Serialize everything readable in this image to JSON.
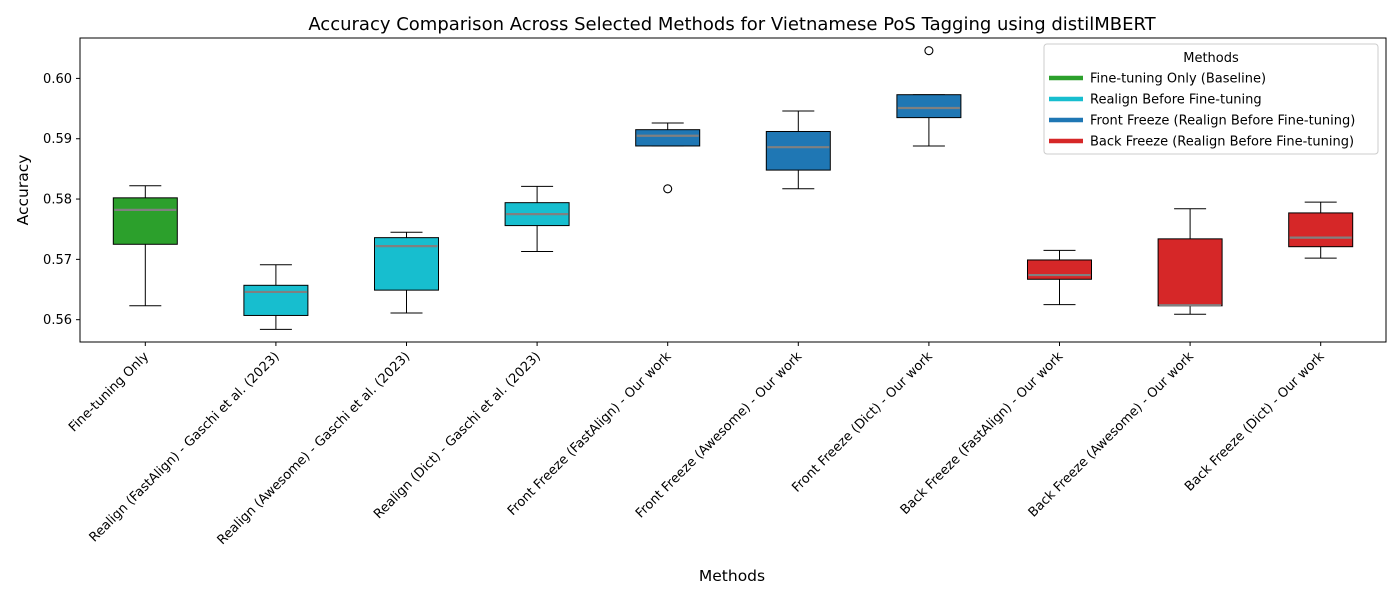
{
  "chart_data": {
    "type": "boxplot",
    "title": "Accuracy Comparison Across Selected Methods for Vietnamese PoS Tagging using distilMBERT",
    "xlabel": "Methods",
    "ylabel": "Accuracy",
    "ylim": [
      0.5563,
      0.6067
    ],
    "yticks": [
      0.56,
      0.57,
      0.58,
      0.59,
      0.6
    ],
    "ytick_labels": [
      "0.56",
      "0.57",
      "0.58",
      "0.59",
      "0.60"
    ],
    "grid": false,
    "median_color": "#808080",
    "categories": [
      "Fine-tuning Only",
      "Realign (FastAlign) - Gaschi et al. (2023)",
      "Realign (Awesome) - Gaschi et al. (2023)",
      "Realign (Dict) - Gaschi et al. (2023)",
      "Front Freeze (FastAlign) - Our work",
      "Front Freeze (Awesome) - Our work",
      "Front Freeze (Dict) - Our work",
      "Back Freeze (FastAlign) - Our work",
      "Back Freeze (Awesome) - Our work",
      "Back Freeze (Dict) - Our work"
    ],
    "boxes": [
      {
        "group": 0,
        "whisker_low": 0.5623,
        "q1": 0.5725,
        "median": 0.5782,
        "q3": 0.5802,
        "whisker_high": 0.5822,
        "outliers": []
      },
      {
        "group": 1,
        "whisker_low": 0.5584,
        "q1": 0.5607,
        "median": 0.5646,
        "q3": 0.5657,
        "whisker_high": 0.5691,
        "outliers": []
      },
      {
        "group": 1,
        "whisker_low": 0.5611,
        "q1": 0.5649,
        "median": 0.5722,
        "q3": 0.5736,
        "whisker_high": 0.5745,
        "outliers": []
      },
      {
        "group": 1,
        "whisker_low": 0.5713,
        "q1": 0.5756,
        "median": 0.5775,
        "q3": 0.5794,
        "whisker_high": 0.5821,
        "outliers": []
      },
      {
        "group": 2,
        "whisker_low": 0.5888,
        "q1": 0.5888,
        "median": 0.5905,
        "q3": 0.5915,
        "whisker_high": 0.5926,
        "outliers": [
          0.5817
        ]
      },
      {
        "group": 2,
        "whisker_low": 0.5817,
        "q1": 0.5848,
        "median": 0.5886,
        "q3": 0.5912,
        "whisker_high": 0.5946,
        "outliers": []
      },
      {
        "group": 2,
        "whisker_low": 0.5888,
        "q1": 0.5935,
        "median": 0.5951,
        "q3": 0.5973,
        "whisker_high": 0.5973,
        "outliers": [
          0.6046
        ]
      },
      {
        "group": 3,
        "whisker_low": 0.5625,
        "q1": 0.5667,
        "median": 0.5674,
        "q3": 0.5699,
        "whisker_high": 0.5715,
        "outliers": []
      },
      {
        "group": 3,
        "whisker_low": 0.5609,
        "q1": 0.5623,
        "median": 0.5624,
        "q3": 0.5734,
        "whisker_high": 0.5784,
        "outliers": []
      },
      {
        "group": 3,
        "whisker_low": 0.5702,
        "q1": 0.5721,
        "median": 0.5736,
        "q3": 0.5777,
        "whisker_high": 0.5795,
        "outliers": []
      }
    ],
    "legend": {
      "title": "Methods",
      "placement": "top-right",
      "entries": [
        {
          "label": "Fine-tuning Only (Baseline)",
          "color": "#2ca02c"
        },
        {
          "label": "Realign Before Fine-tuning",
          "color": "#17becf"
        },
        {
          "label": "Front Freeze (Realign Before Fine-tuning)",
          "color": "#1f77b4"
        },
        {
          "label": "Back Freeze (Realign Before Fine-tuning)",
          "color": "#d62728"
        }
      ]
    }
  }
}
